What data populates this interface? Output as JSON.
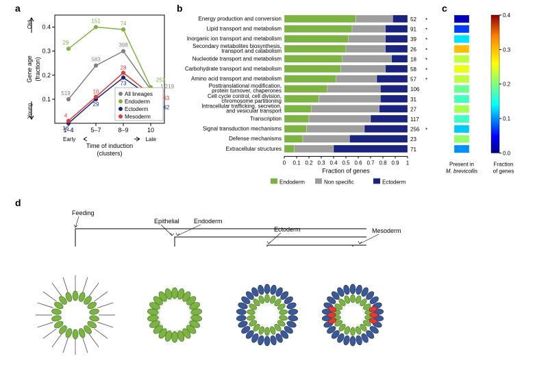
{
  "panel_a": {
    "label": "a",
    "type": "line",
    "xlabel": "Time of induction\n(clusters)",
    "xlabel_left": "Early",
    "xlabel_right": "Late",
    "ylabel": "Gene age\n(fraction)",
    "ylabel_top": "Old",
    "ylabel_bottom": "Young",
    "x_categories": [
      "1–4",
      "5–7",
      "8–9",
      "10"
    ],
    "ylim": [
      0,
      0.45
    ],
    "yticks": [
      0.1,
      0.2,
      0.3,
      0.4
    ],
    "series": [
      {
        "name": "All lineages",
        "color": "#808080",
        "values": [
          0.1,
          0.24,
          0.3,
          0.14
        ],
        "labels": [
          "519",
          "583",
          "398",
          "1,219"
        ],
        "label_color": "#808080"
      },
      {
        "name": "Endoderm",
        "color": "#7cb342",
        "values": [
          0.31,
          0.4,
          0.39,
          0.15
        ],
        "labels": [
          "29",
          "151",
          "74",
          "253"
        ],
        "label_color": "#7cb342"
      },
      {
        "name": "Ectoderm",
        "color": "#1a237e",
        "values": [
          0.0,
          0.1,
          0.19,
          0.11
        ],
        "labels": [
          "16",
          "29",
          "73",
          "362"
        ],
        "label_color": "#1a237e"
      },
      {
        "name": "Mesoderm",
        "color": "#e53935",
        "values": [
          0.01,
          0.11,
          0.21,
          0.12
        ],
        "labels": [
          "4",
          "10",
          "28",
          "163"
        ],
        "label_color": "#e53935"
      }
    ],
    "legend_position": "lower-right",
    "marker": "circle",
    "marker_size": 4,
    "line_width": 1.5,
    "background_color": "#ffffff"
  },
  "panel_b": {
    "label": "b",
    "type": "stacked-bar-horizontal",
    "xlabel": "Fraction of genes",
    "xlim": [
      0,
      1
    ],
    "xticks": [
      0,
      0.1,
      0.2,
      0.3,
      0.4,
      0.5,
      0.6,
      0.7,
      0.8,
      0.9,
      1
    ],
    "legend": [
      {
        "name": "Endoderm",
        "color": "#7cb342"
      },
      {
        "name": "Non specific",
        "color": "#9e9e9e"
      },
      {
        "name": "Ectoderm",
        "color": "#1a237e"
      }
    ],
    "rows": [
      {
        "label": "Energy production and conversion",
        "fractions": [
          0.58,
          0.3,
          0.12
        ],
        "count": 52,
        "sig": "green"
      },
      {
        "label": "Lipid transport and metabolism",
        "fractions": [
          0.55,
          0.27,
          0.18
        ],
        "count": 91,
        "sig": "green"
      },
      {
        "label": "Inorganic ion transport and metabolism",
        "fractions": [
          0.52,
          0.3,
          0.18
        ],
        "count": 39,
        "sig": "green"
      },
      {
        "label": "Secondary metabolites biosynthesis,\ntransport and catabolism",
        "fractions": [
          0.5,
          0.32,
          0.18
        ],
        "count": 26,
        "sig": "green"
      },
      {
        "label": "Nucleotide transport and metabolism",
        "fractions": [
          0.47,
          0.4,
          0.13
        ],
        "count": 18,
        "sig": "green"
      },
      {
        "label": "Carbohydrate transport and metabolism",
        "fractions": [
          0.46,
          0.36,
          0.18
        ],
        "count": 58,
        "sig": "green"
      },
      {
        "label": "Amino acid transport and metabolism",
        "fractions": [
          0.42,
          0.33,
          0.25
        ],
        "count": 57,
        "sig": "green"
      },
      {
        "label": "Posttranslational modification,\nprotein turnover, chaperones",
        "fractions": [
          0.35,
          0.43,
          0.22
        ],
        "count": 106,
        "sig": null
      },
      {
        "label": "Cell cycle control, cell division,\nchromosome partitioning",
        "fractions": [
          0.28,
          0.5,
          0.22
        ],
        "count": 31,
        "sig": null
      },
      {
        "label": "Intracellular trafficking, secretion,\nand vesicular transport",
        "fractions": [
          0.22,
          0.55,
          0.23
        ],
        "count": 27,
        "sig": null
      },
      {
        "label": "Transcription",
        "fractions": [
          0.2,
          0.5,
          0.3
        ],
        "count": 117,
        "sig": null
      },
      {
        "label": "Signal transduction mechanisms",
        "fractions": [
          0.18,
          0.47,
          0.35
        ],
        "count": 256,
        "sig": "black"
      },
      {
        "label": "Defense mechanisms",
        "fractions": [
          0.15,
          0.38,
          0.47
        ],
        "count": 23,
        "sig": null
      },
      {
        "label": "Extracellular structures",
        "fractions": [
          0.08,
          0.32,
          0.6
        ],
        "count": 71,
        "sig": null
      }
    ],
    "bar_height": 0.75
  },
  "panel_c": {
    "label": "c",
    "type": "heatmap",
    "xlabel": "Present in\nM. brevicollis",
    "colorbar_label": "Fraction\nof genes",
    "colorbar_lim": [
      0,
      0.4
    ],
    "colorbar_ticks": [
      0,
      0.1,
      0.2,
      0.3,
      0.4
    ],
    "values": [
      0.02,
      0.07,
      0.13,
      0.3,
      0.23,
      0.25,
      0.23,
      0.19,
      0.17,
      0.22,
      0.17,
      0.12,
      0.21,
      0.1
    ],
    "colormap": "jet"
  },
  "panel_d": {
    "label": "d",
    "type": "tree",
    "nodes": [
      "Feeding",
      "Epithelial",
      "Endoderm",
      "Ectoderm",
      "Mesoderm"
    ],
    "colors": {
      "endoderm": "#7cb342",
      "ectoderm": "#3b5998",
      "mesoderm": "#e53935",
      "outline": "#555555"
    }
  }
}
